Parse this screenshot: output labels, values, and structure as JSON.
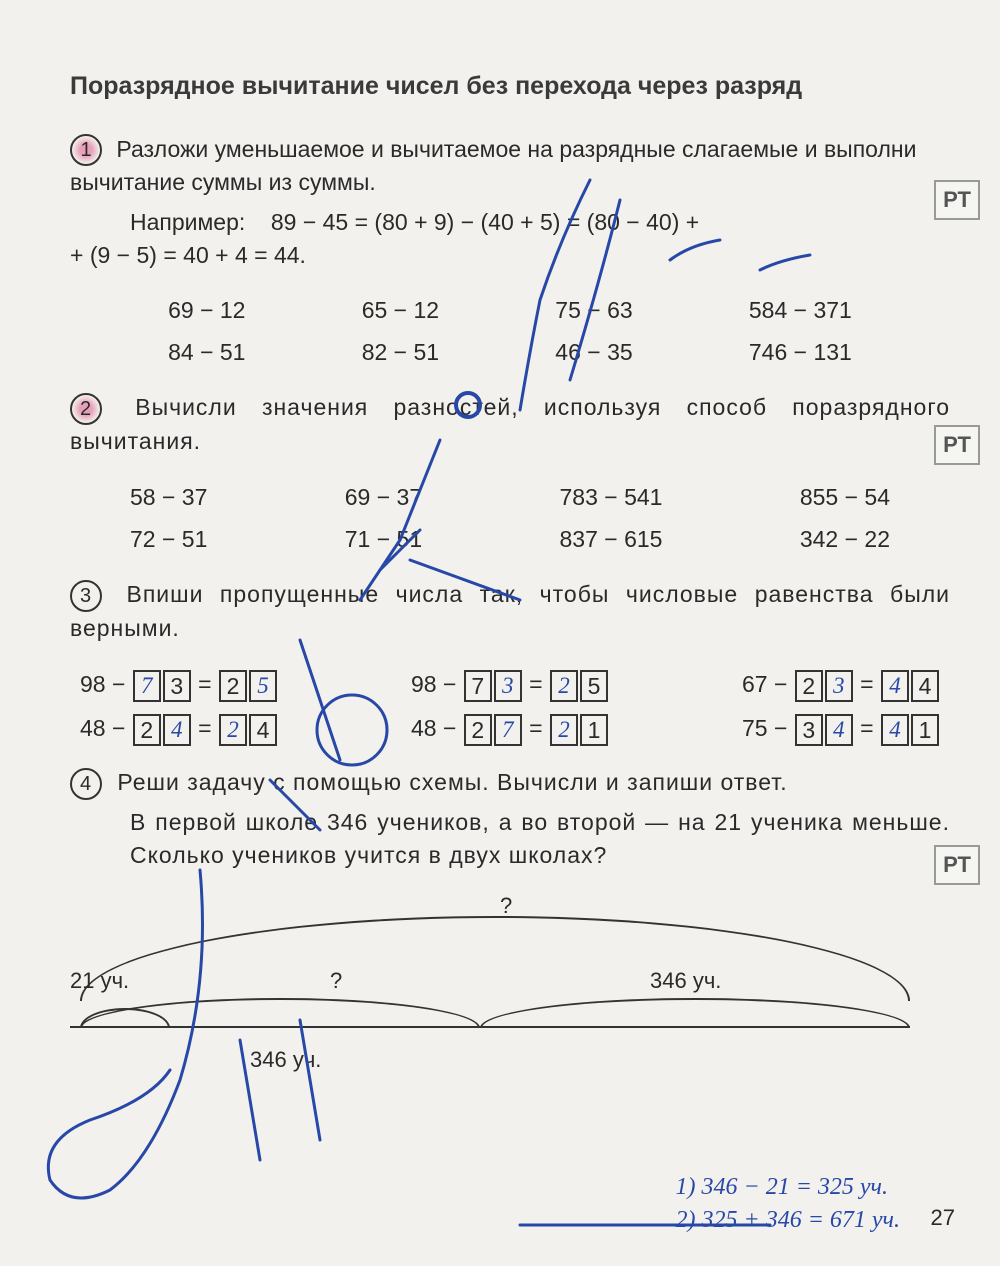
{
  "title": "Поразрядное вычитание чисел без перехода через разряд",
  "pt_label": "РТ",
  "task1": {
    "num": "1",
    "text": "Разложи уменьшаемое и вычитаемое на разрядные слагаемые и выполни вычитание суммы из суммы.",
    "example_label": "Например:",
    "example": "89 − 45 = (80 + 9) − (40 + 5) = (80 − 40) +",
    "example_line2": "+ (9 − 5) = 40 + 4 = 44.",
    "row1": [
      "69 − 12",
      "65 − 12",
      "75 − 63",
      "584 − 371"
    ],
    "row2": [
      "84 − 51",
      "82 − 51",
      "46 − 35",
      "746 − 131"
    ]
  },
  "task2": {
    "num": "2",
    "text": "Вычисли значения разностей, используя способ поразрядного вычитания.",
    "row1": [
      "58 − 37",
      "69 − 37",
      "783 − 541",
      "855 − 54"
    ],
    "row2": [
      "72 − 51",
      "71 − 51",
      "837 − 615",
      "342 − 22"
    ]
  },
  "task3": {
    "num": "3",
    "text": "Впиши пропущенные числа так, чтобы числовые равенства были верными.",
    "equations": [
      {
        "left": "98 −",
        "b1": "7",
        "b2": "3",
        "mid": " = ",
        "b3": "2",
        "b4": "5",
        "hw": [
          true,
          false,
          false,
          true
        ]
      },
      {
        "left": "98 −",
        "b1": "7",
        "b2": "3",
        "mid": " = ",
        "b3": "2",
        "b4": "5",
        "hw": [
          false,
          true,
          true,
          false
        ]
      },
      {
        "left": "67 −",
        "b1": "2",
        "b2": "3",
        "mid": " = ",
        "b3": "4",
        "b4": "4",
        "hw": [
          false,
          true,
          true,
          false
        ]
      },
      {
        "left": "48 −",
        "b1": "2",
        "b2": "4",
        "mid": " = ",
        "b3": "2",
        "b4": "4",
        "hw": [
          false,
          true,
          true,
          false
        ]
      },
      {
        "left": "48 −",
        "b1": "2",
        "b2": "7",
        "mid": " = ",
        "b3": "2",
        "b4": "1",
        "hw": [
          false,
          true,
          true,
          false
        ]
      },
      {
        "left": "75 −",
        "b1": "3",
        "b2": "4",
        "mid": " = ",
        "b3": "4",
        "b4": "1",
        "hw": [
          false,
          true,
          true,
          false
        ]
      }
    ]
  },
  "task4": {
    "num": "4",
    "text": "Реши задачу с помощью схемы. Вычисли и запиши ответ.",
    "problem": "В первой школе 346 учеников, а во второй — на 21 ученика меньше. Сколько учеников учится в двух школах?",
    "schema": {
      "q_top": "?",
      "left_label": "21 уч.",
      "q_mid": "?",
      "right_label": "346 уч.",
      "bottom_label": "346 уч."
    },
    "solution": {
      "line1": "1) 346 − 21 = 325 уч.",
      "line2": "2) 325 + 346 = 671 уч."
    }
  },
  "page_number": "27",
  "colors": {
    "pen": "#2848a8",
    "text": "#2a2a2a",
    "bg": "#f2f1ed"
  }
}
